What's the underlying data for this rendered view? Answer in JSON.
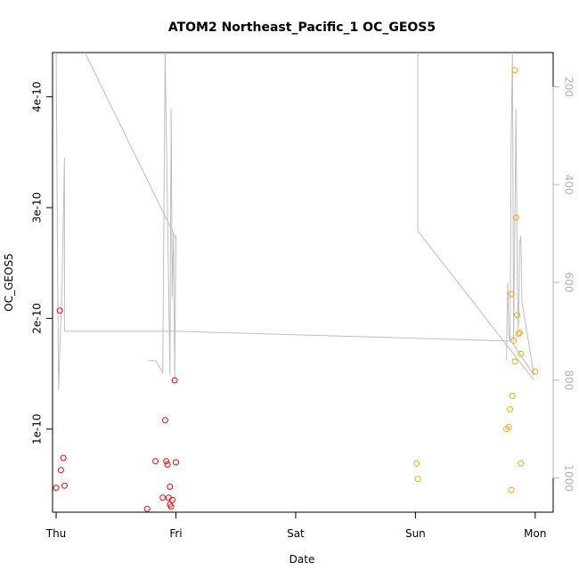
{
  "chart_data": {
    "type": "scatter",
    "title": "ATOM2 Northeast_Pacific_1 OC_GEOS5",
    "xlabel": "Date",
    "ylabel": "OC_GEOS5",
    "x_ticks": [
      {
        "label": "Thu",
        "value": 0
      },
      {
        "label": "Fri",
        "value": 1
      },
      {
        "label": "Sat",
        "value": 2
      },
      {
        "label": "Sun",
        "value": 3
      },
      {
        "label": "Mon",
        "value": 4
      }
    ],
    "xlim": [
      -0.03,
      4.15
    ],
    "ylim": [
      2.5e-11,
      4.4e-10
    ],
    "y_ticks": [
      {
        "label": "1e-10",
        "value": 1e-10
      },
      {
        "label": "2e-10",
        "value": 2e-10
      },
      {
        "label": "3e-10",
        "value": 3e-10
      },
      {
        "label": "4e-10",
        "value": 4e-10
      }
    ],
    "right_axis": {
      "ylim": [
        1070,
        130
      ],
      "ticks": [
        {
          "label": "200",
          "value": 200
        },
        {
          "label": "400",
          "value": 400
        },
        {
          "label": "600",
          "value": 600
        },
        {
          "label": "800",
          "value": 800
        },
        {
          "label": "1000",
          "value": 1000
        }
      ],
      "color": "#b3b3b3"
    },
    "series": [
      {
        "color": "#ff0000",
        "points": [
          {
            "x": 0.0,
            "y": 4.7e-11
          },
          {
            "x": 0.03,
            "y": 2.07e-10
          },
          {
            "x": 0.04,
            "y": 6.3e-11
          },
          {
            "x": 0.06,
            "y": 7.4e-11
          },
          {
            "x": 0.07,
            "y": 4.9e-11
          },
          {
            "x": 0.76,
            "y": 2.8e-11
          },
          {
            "x": 0.83,
            "y": 7.1e-11
          },
          {
            "x": 0.89,
            "y": 3.8e-11
          },
          {
            "x": 0.91,
            "y": 1.08e-10
          },
          {
            "x": 0.92,
            "y": 7.1e-11
          },
          {
            "x": 0.93,
            "y": 6.8e-11
          },
          {
            "x": 0.94,
            "y": 3.8e-11
          },
          {
            "x": 0.95,
            "y": 3.2e-11
          },
          {
            "x": 0.95,
            "y": 4.8e-11
          },
          {
            "x": 0.96,
            "y": 3e-11
          },
          {
            "x": 0.97,
            "y": 3.6e-11
          },
          {
            "x": 0.99,
            "y": 1.44e-10
          },
          {
            "x": 1.0,
            "y": 7e-11
          }
        ]
      },
      {
        "color": "#ffa500",
        "points": [
          {
            "x": 3.01,
            "y": 6.9e-11
          },
          {
            "x": 3.02,
            "y": 5.5e-11
          },
          {
            "x": 3.76,
            "y": 1e-10
          },
          {
            "x": 3.78,
            "y": 1.02e-10
          },
          {
            "x": 3.79,
            "y": 1.18e-10
          },
          {
            "x": 3.8,
            "y": 4.5e-11
          },
          {
            "x": 3.8,
            "y": 2.22e-10
          },
          {
            "x": 3.81,
            "y": 1.3e-10
          },
          {
            "x": 3.82,
            "y": 1.8e-10
          },
          {
            "x": 3.83,
            "y": 1.61e-10
          },
          {
            "x": 3.83,
            "y": 4.24e-10
          },
          {
            "x": 3.84,
            "y": 2.91e-10
          },
          {
            "x": 3.85,
            "y": 2.03e-10
          },
          {
            "x": 3.86,
            "y": 1.86e-10
          },
          {
            "x": 3.87,
            "y": 1.87e-10
          },
          {
            "x": 3.88,
            "y": 6.9e-11
          },
          {
            "x": 3.88,
            "y": 1.68e-10
          },
          {
            "x": 4.0,
            "y": 1.52e-10
          }
        ]
      },
      {
        "color": "#bebebe",
        "axis": "right",
        "line": [
          {
            "x": 0.0,
            "y": 100
          },
          {
            "x": 0.02,
            "y": 820
          },
          {
            "x": 0.06,
            "y": 345
          },
          {
            "x": 0.07,
            "y": 100
          },
          {
            "x": 0.07,
            "y": 700
          },
          {
            "x": 0.24,
            "y": 100
          },
          {
            "x": 3.77,
            "y": 720
          },
          {
            "x": 3.78,
            "y": 620
          }
        ]
      }
    ],
    "overlay_lines": [
      {
        "axis": "right",
        "points": [
          {
            "x": 0.0,
            "y": 120
          },
          {
            "x": 0.02,
            "y": 820
          },
          {
            "x": 0.05,
            "y": 600
          },
          {
            "x": 0.07,
            "y": 345
          },
          {
            "x": 0.07,
            "y": 700
          },
          {
            "x": 1.0,
            "y": 700
          },
          {
            "x": 3.8,
            "y": 720
          },
          {
            "x": 3.99,
            "y": 790
          }
        ]
      },
      {
        "axis": "right",
        "points": [
          {
            "x": 0.24,
            "y": 100
          },
          {
            "x": 1.0,
            "y": 510
          }
        ]
      },
      {
        "axis": "right",
        "points": [
          {
            "x": 0.77,
            "y": 760
          },
          {
            "x": 0.83,
            "y": 760
          },
          {
            "x": 0.89,
            "y": 785
          },
          {
            "x": 0.91,
            "y": 100
          },
          {
            "x": 0.95,
            "y": 790
          },
          {
            "x": 0.96,
            "y": 245
          },
          {
            "x": 0.97,
            "y": 630
          },
          {
            "x": 0.98,
            "y": 500
          },
          {
            "x": 0.99,
            "y": 800
          },
          {
            "x": 1.0,
            "y": 505
          }
        ]
      },
      {
        "axis": "right",
        "points": [
          {
            "x": 3.02,
            "y": 100
          },
          {
            "x": 3.02,
            "y": 495
          },
          {
            "x": 3.99,
            "y": 800
          }
        ]
      },
      {
        "axis": "right",
        "points": [
          {
            "x": 3.76,
            "y": 760
          },
          {
            "x": 3.77,
            "y": 600
          },
          {
            "x": 3.78,
            "y": 710
          },
          {
            "x": 3.79,
            "y": 720
          },
          {
            "x": 3.8,
            "y": 300
          },
          {
            "x": 3.81,
            "y": 100
          },
          {
            "x": 3.82,
            "y": 720
          },
          {
            "x": 3.84,
            "y": 245
          },
          {
            "x": 3.85,
            "y": 600
          },
          {
            "x": 3.86,
            "y": 700
          },
          {
            "x": 3.87,
            "y": 520
          },
          {
            "x": 3.88,
            "y": 505
          },
          {
            "x": 3.89,
            "y": 640
          },
          {
            "x": 3.99,
            "y": 790
          }
        ]
      }
    ]
  }
}
